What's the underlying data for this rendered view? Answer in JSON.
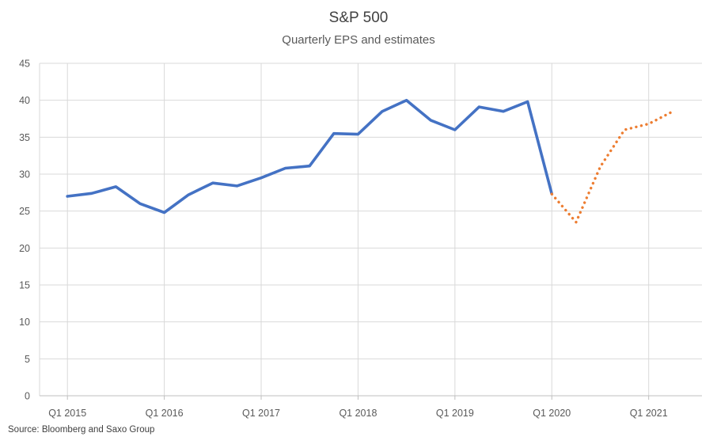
{
  "chart_data": {
    "type": "line",
    "title": "S&P 500",
    "subtitle": "Quarterly EPS and estimates",
    "xlabel": "",
    "ylabel": "",
    "ylim": [
      0,
      45
    ],
    "yticks": [
      0,
      5,
      10,
      15,
      20,
      25,
      30,
      35,
      40,
      45
    ],
    "xtick_labels": [
      "Q1 2015",
      "Q1 2016",
      "Q1 2017",
      "Q1 2018",
      "Q1 2019",
      "Q1 2020",
      "Q1 2021"
    ],
    "xtick_quarter_index": [
      0,
      4,
      8,
      12,
      16,
      20,
      24
    ],
    "grid": true,
    "legend": "none",
    "series": [
      {
        "name": "EPS",
        "style": "solid",
        "color": "#4472C4",
        "x": [
          0,
          1,
          2,
          3,
          4,
          5,
          6,
          7,
          8,
          9,
          10,
          11,
          12,
          13,
          14,
          15,
          16,
          17,
          18,
          19,
          20
        ],
        "values": [
          27.0,
          27.4,
          28.3,
          26.0,
          24.8,
          27.2,
          28.8,
          28.4,
          29.5,
          30.8,
          31.1,
          35.5,
          35.4,
          38.5,
          40.0,
          37.3,
          36.0,
          39.1,
          38.5,
          39.8,
          27.3
        ]
      },
      {
        "name": "Estimates",
        "style": "dotted",
        "color": "#ED7D31",
        "x": [
          20,
          21,
          22,
          23,
          24,
          25
        ],
        "values": [
          27.3,
          23.5,
          31.0,
          36.0,
          36.8,
          38.5
        ]
      }
    ]
  },
  "source": "Source: Bloomberg and Saxo Group"
}
